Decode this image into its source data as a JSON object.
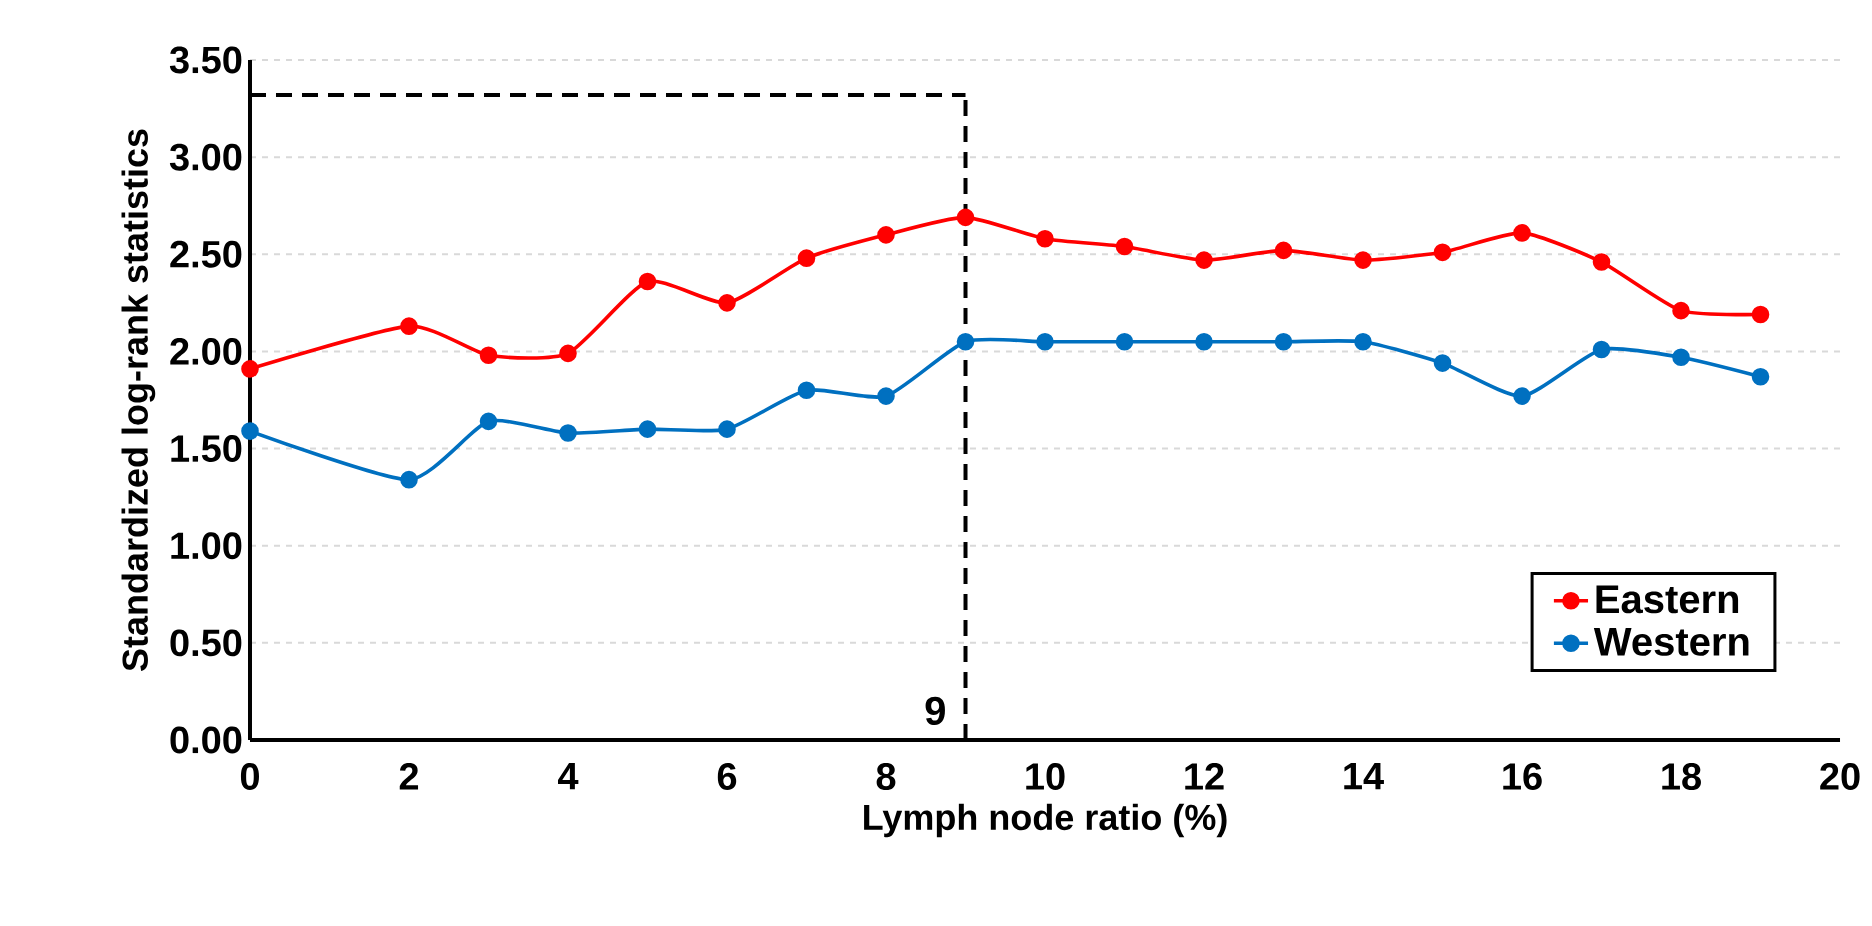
{
  "chart_data": {
    "type": "line",
    "xlabel": "Lymph node ratio (%)",
    "ylabel": "Standardized log-rank statistics",
    "x": [
      0,
      2,
      3,
      4,
      5,
      6,
      7,
      8,
      9,
      10,
      11,
      12,
      13,
      14,
      15,
      16,
      17,
      18,
      19
    ],
    "series": [
      {
        "name": "Eastern",
        "color": "#ff0000",
        "values": [
          1.91,
          2.13,
          1.98,
          1.99,
          2.36,
          2.25,
          2.48,
          2.6,
          2.69,
          2.58,
          2.54,
          2.47,
          2.52,
          2.47,
          2.51,
          2.61,
          2.46,
          2.21,
          2.19
        ]
      },
      {
        "name": "Western",
        "color": "#0070c0",
        "values": [
          1.59,
          1.34,
          1.64,
          1.58,
          1.6,
          1.6,
          1.8,
          1.77,
          2.05,
          2.05,
          2.05,
          2.05,
          2.05,
          2.05,
          1.94,
          1.77,
          2.01,
          1.97,
          1.87
        ]
      }
    ],
    "xlim": [
      0,
      20
    ],
    "xticks": [
      0,
      2,
      4,
      6,
      8,
      10,
      12,
      14,
      16,
      18,
      20
    ],
    "ylim": [
      0,
      3.5
    ],
    "yticks": [
      {
        "value": 0,
        "label": "0.00"
      },
      {
        "value": 0.5,
        "label": "0.50"
      },
      {
        "value": 1,
        "label": "1.00"
      },
      {
        "value": 1.5,
        "label": "1.50"
      },
      {
        "value": 2,
        "label": "2.00"
      },
      {
        "value": 2.5,
        "label": "2.50"
      },
      {
        "value": 3,
        "label": "3.00"
      },
      {
        "value": 3.5,
        "label": "3.50"
      }
    ],
    "ref_lines": [
      {
        "axis": "x",
        "value": 9,
        "label": "9",
        "color": "#000000",
        "line_style": "dashed"
      },
      {
        "axis": "y",
        "value": 3.32,
        "color": "#000000",
        "line_style": "dashed"
      }
    ],
    "grid": "y",
    "legend": "bottom right",
    "marker": "circle",
    "line_style": "solid"
  }
}
